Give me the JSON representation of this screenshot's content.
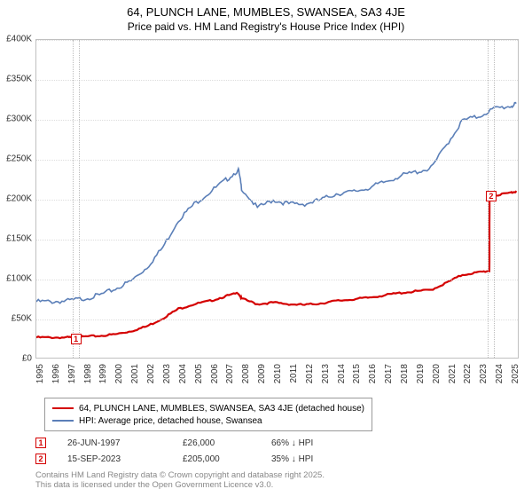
{
  "title": "64, PLUNCH LANE, MUMBLES, SWANSEA, SA3 4JE",
  "subtitle": "Price paid vs. HM Land Registry's House Price Index (HPI)",
  "chart": {
    "type": "line",
    "background_color": "#ffffff",
    "grid_color": "#dddddd",
    "border_color": "#c0c0c0",
    "xlim": [
      1995,
      2025.5
    ],
    "ylim": [
      0,
      400000
    ],
    "ytick_step": 50000,
    "ytick_labels": [
      "£0",
      "£50K",
      "£100K",
      "£150K",
      "£200K",
      "£250K",
      "£300K",
      "£350K",
      "£400K"
    ],
    "xtick_step": 1,
    "xtick_labels": [
      "1995",
      "1996",
      "1997",
      "1998",
      "1999",
      "2000",
      "2001",
      "2002",
      "2003",
      "2004",
      "2005",
      "2006",
      "2007",
      "2008",
      "2009",
      "2010",
      "2011",
      "2012",
      "2013",
      "2014",
      "2015",
      "2016",
      "2017",
      "2018",
      "2019",
      "2020",
      "2021",
      "2022",
      "2023",
      "2024",
      "2025"
    ],
    "title_fontsize": 13,
    "subtitle_fontsize": 12,
    "tick_fontsize": 10,
    "series": [
      {
        "name": "price_paid",
        "label": "64, PLUNCH LANE, MUMBLES, SWANSEA, SA3 4JE (detached house)",
        "color": "#d40000",
        "line_width": 2.2,
        "x": [
          1995,
          1996,
          1997,
          1997.5,
          1998,
          1999,
          2000,
          2001,
          2002,
          2003,
          2004,
          2005,
          2006,
          2007,
          2007.8,
          2008,
          2009,
          2010,
          2011,
          2012,
          2013,
          2014,
          2015,
          2016,
          2017,
          2018,
          2019,
          2020,
          2021,
          2022,
          2023,
          2023.7,
          2023.71,
          2024,
          2025,
          2025.4
        ],
        "y": [
          26000,
          26000,
          26000,
          26000,
          27000,
          28000,
          30000,
          34000,
          40000,
          50000,
          62000,
          68000,
          72000,
          78000,
          82000,
          75000,
          68000,
          70000,
          68000,
          67000,
          69000,
          72000,
          74000,
          76000,
          79000,
          82000,
          84000,
          86000,
          95000,
          105000,
          108000,
          110000,
          205000,
          205000,
          208000,
          210000
        ]
      },
      {
        "name": "hpi",
        "label": "HPI: Average price, detached house, Swansea",
        "color": "#5b7fb8",
        "line_width": 1.6,
        "x": [
          1995,
          1996,
          1997,
          1998,
          1999,
          2000,
          2001,
          2002,
          2003,
          2004,
          2005,
          2006,
          2007,
          2007.8,
          2008,
          2009,
          2010,
          2011,
          2012,
          2013,
          2014,
          2015,
          2016,
          2017,
          2018,
          2019,
          2020,
          2021,
          2022,
          2023,
          2024,
          2025,
          2025.4
        ],
        "y": [
          72000,
          72000,
          73000,
          76000,
          80000,
          88000,
          98000,
          115000,
          140000,
          175000,
          195000,
          210000,
          225000,
          238000,
          215000,
          190000,
          200000,
          195000,
          195000,
          200000,
          208000,
          210000,
          215000,
          222000,
          230000,
          235000,
          240000,
          270000,
          300000,
          305000,
          315000,
          318000,
          320000
        ]
      }
    ],
    "markers": [
      {
        "n": "1",
        "x": 1997.5,
        "y": 26000,
        "color": "#d40000"
      },
      {
        "n": "2",
        "x": 2023.7,
        "y": 205000,
        "color": "#d40000"
      }
    ],
    "dashed_bands": [
      {
        "x_center": 1997.5
      },
      {
        "x_center": 2023.7
      }
    ]
  },
  "legend": {
    "items": [
      {
        "color": "#d40000",
        "label": "64, PLUNCH LANE, MUMBLES, SWANSEA, SA3 4JE (detached house)"
      },
      {
        "color": "#5b7fb8",
        "label": "HPI: Average price, detached house, Swansea"
      }
    ]
  },
  "sales": [
    {
      "n": "1",
      "color": "#d40000",
      "date": "26-JUN-1997",
      "price": "£26,000",
      "diff": "66% ↓ HPI"
    },
    {
      "n": "2",
      "color": "#d40000",
      "date": "15-SEP-2023",
      "price": "£205,000",
      "diff": "35% ↓ HPI"
    }
  ],
  "footer": {
    "line1": "Contains HM Land Registry data © Crown copyright and database right 2025.",
    "line2": "This data is licensed under the Open Government Licence v3.0."
  }
}
